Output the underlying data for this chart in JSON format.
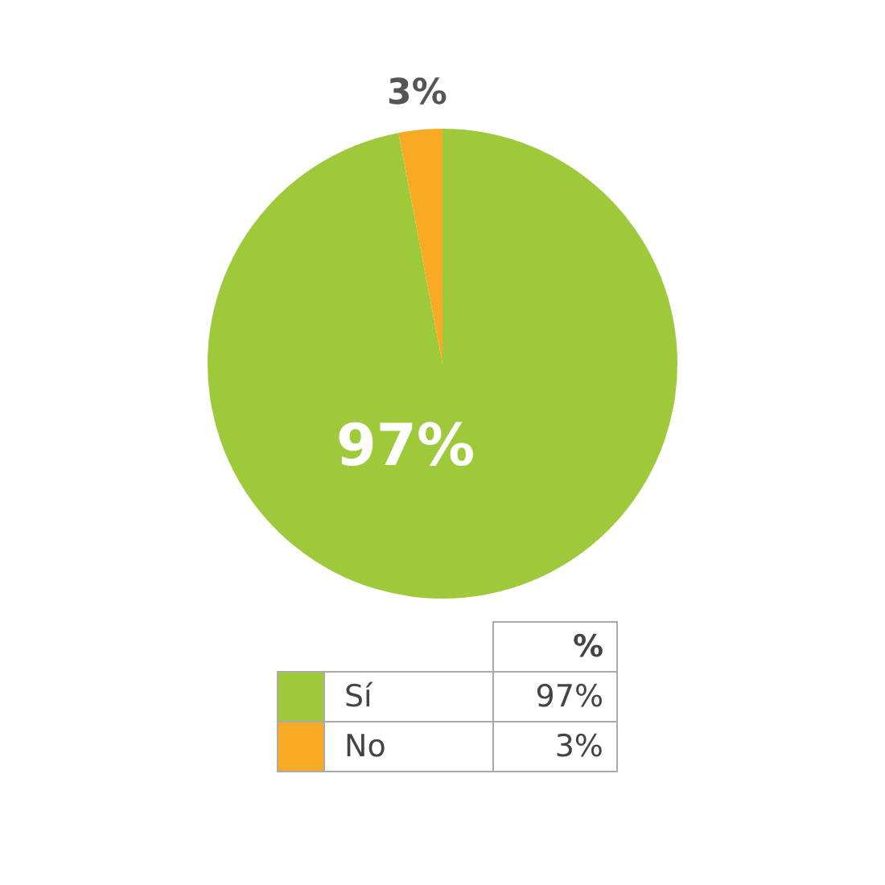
{
  "chart_data": {
    "type": "pie",
    "categories": [
      "Sí",
      "No"
    ],
    "values": [
      97,
      3
    ],
    "colors": [
      "#9dc93b",
      "#f9aa25"
    ],
    "value_labels": [
      "97%",
      "3%"
    ],
    "legend_title": "%",
    "legend": "bottom"
  }
}
